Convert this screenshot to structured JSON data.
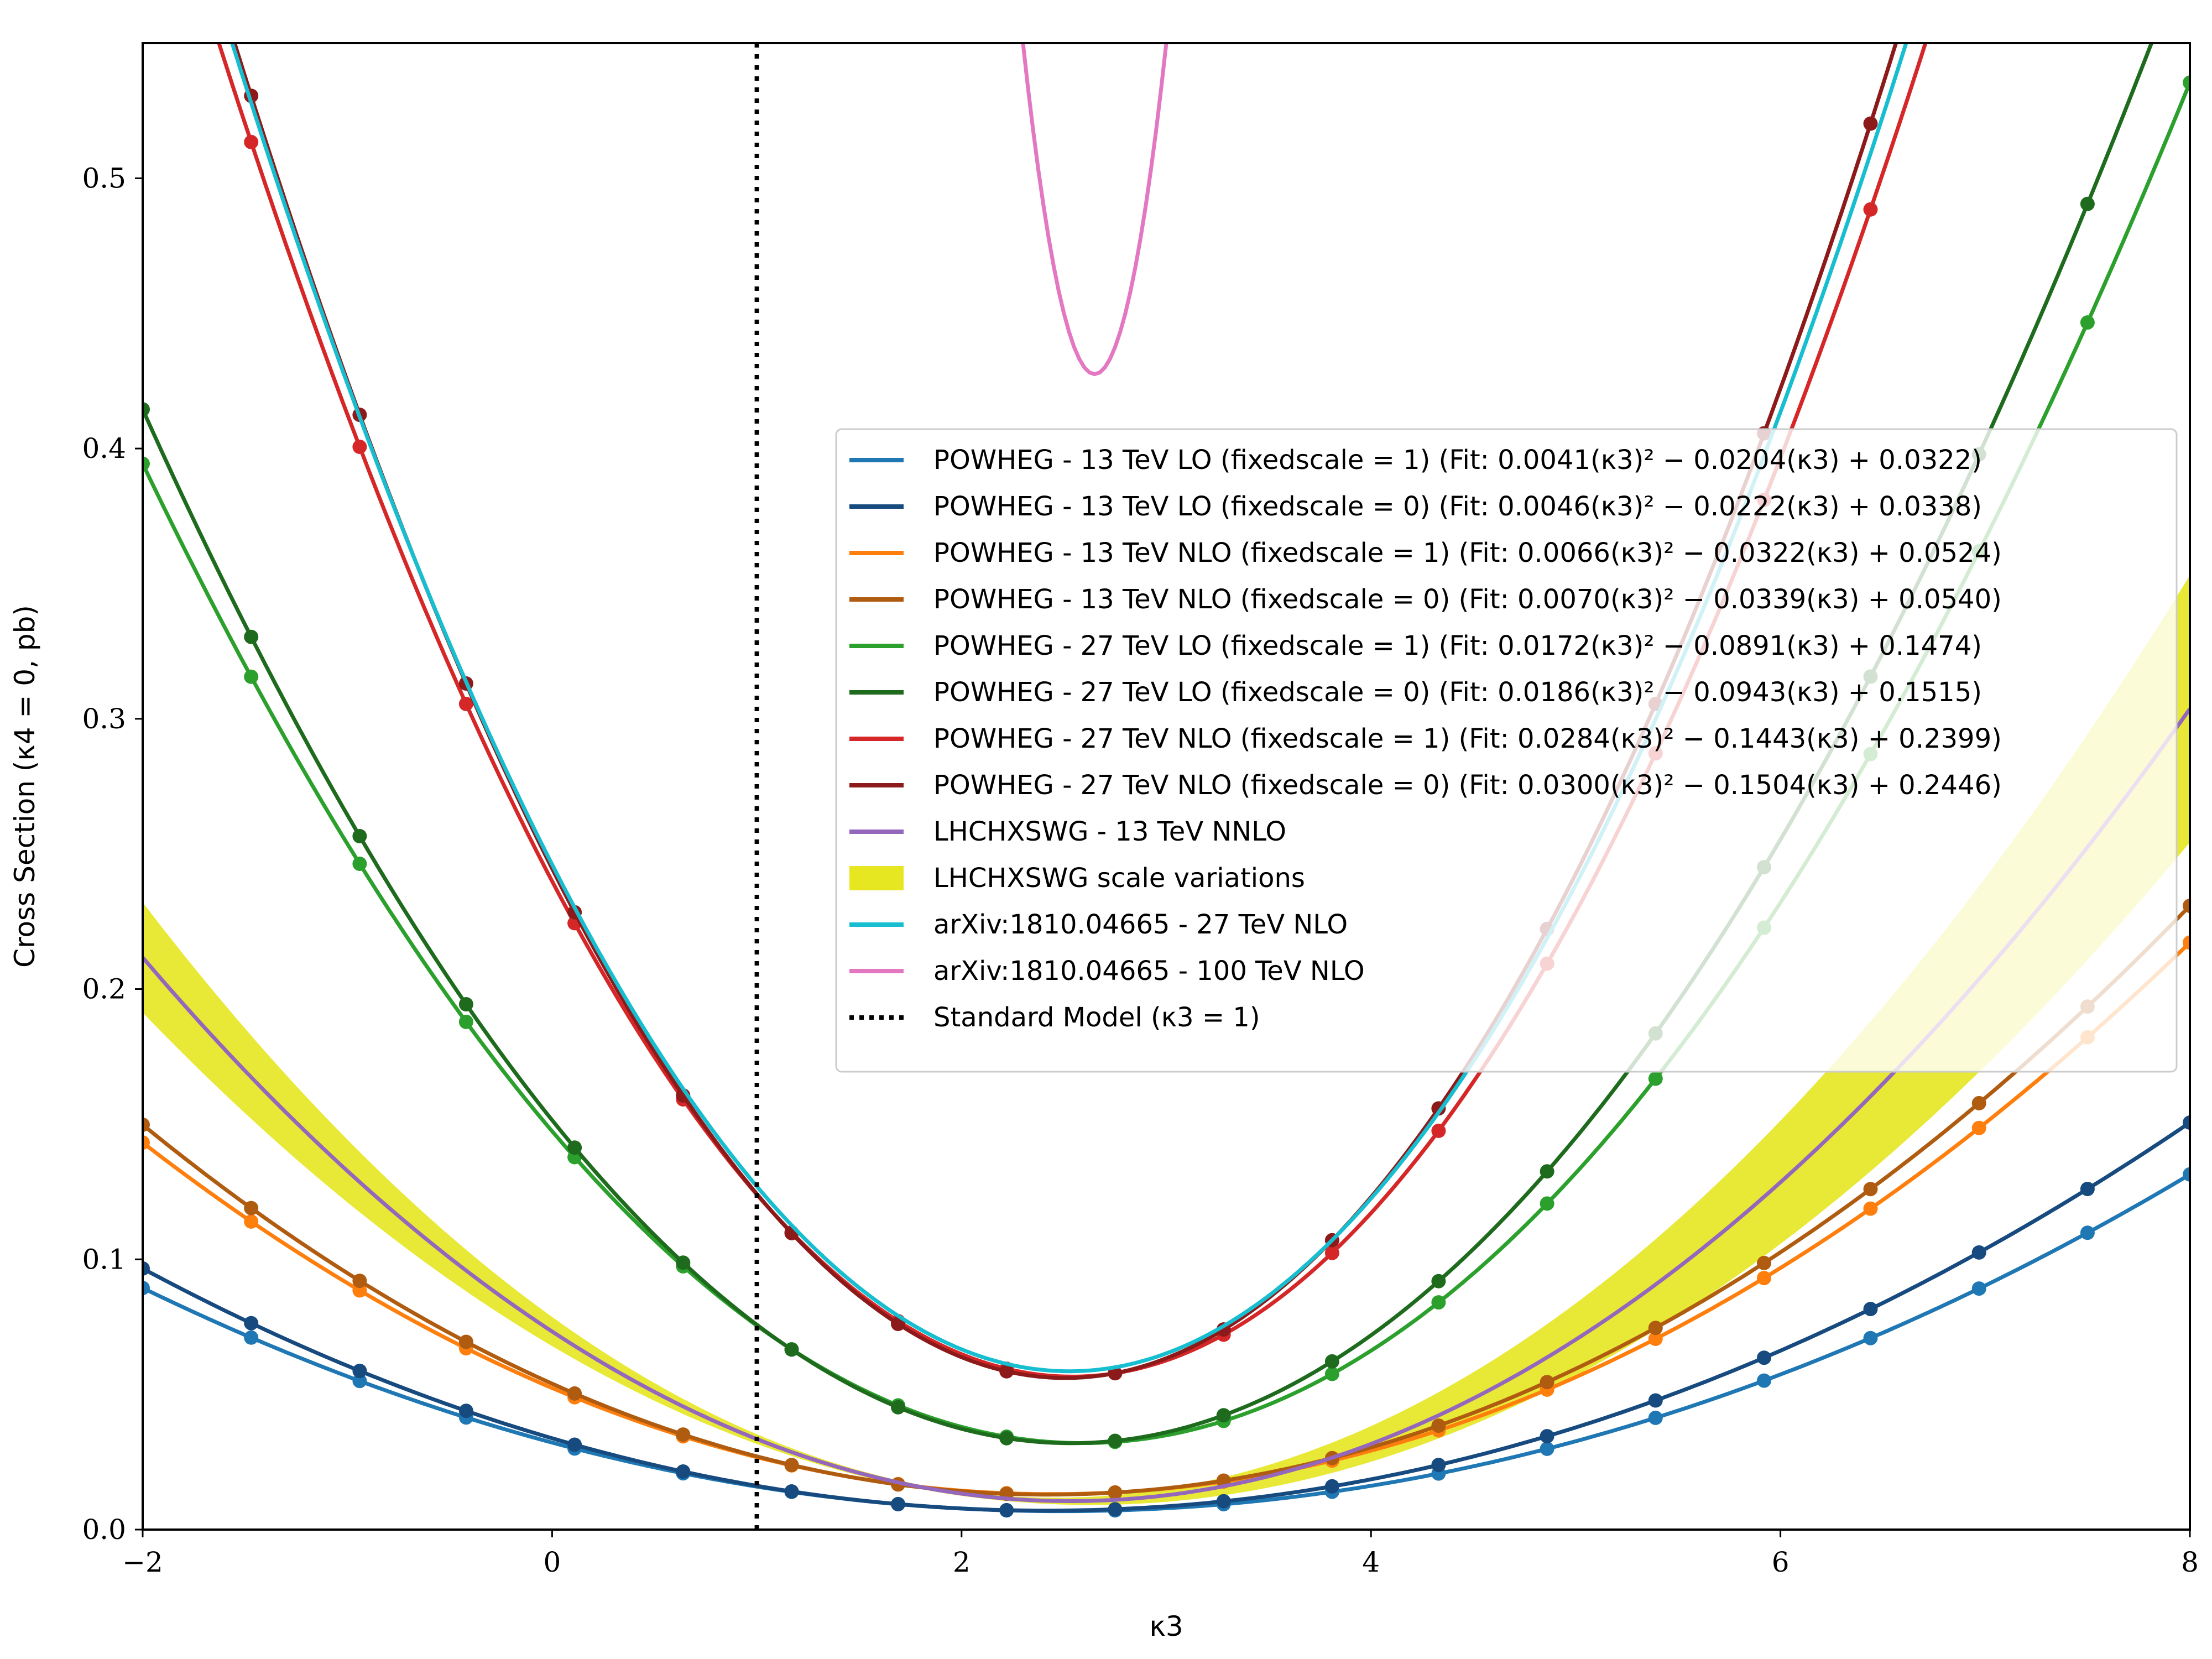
{
  "chart_data": {
    "type": "line",
    "xlabel": "κ3",
    "ylabel": "Cross Section (κ4 = 0, pb)",
    "xlim": [
      -2,
      8
    ],
    "ylim": [
      0,
      0.55
    ],
    "xticks": [
      "−2",
      "0",
      "2",
      "4",
      "6",
      "8"
    ],
    "xtick_values": [
      -2,
      0,
      2,
      4,
      6,
      8
    ],
    "yticks": [
      "0.0",
      "0.1",
      "0.2",
      "0.3",
      "0.4",
      "0.5"
    ],
    "ytick_values": [
      0,
      0.1,
      0.2,
      0.3,
      0.4,
      0.5
    ],
    "grid": false,
    "legend_position": "center-right",
    "sample_x": [
      -2.0,
      -1.47,
      -0.94,
      -0.42,
      0.11,
      0.64,
      1.17,
      1.69,
      2.22,
      2.75,
      3.28,
      3.81,
      4.33,
      4.86,
      5.39,
      5.92,
      6.44,
      6.97,
      7.5,
      8.0
    ],
    "fits": [
      {
        "label": "POWHEG - 13 TeV LO (fixedscale = 1) (Fit: 0.0041(κ3)² − 0.0204(κ3) + 0.0322)",
        "color": "#1f77b4",
        "coef": [
          0.0041,
          -0.0204,
          0.0322
        ],
        "markers": true
      },
      {
        "label": "POWHEG - 13 TeV LO (fixedscale = 0) (Fit: 0.0046(κ3)² − 0.0222(κ3) + 0.0338)",
        "color": "#174a7e",
        "coef": [
          0.0046,
          -0.0222,
          0.0338
        ],
        "markers": true
      },
      {
        "label": "POWHEG - 13 TeV NLO (fixedscale = 1) (Fit: 0.0066(κ3)² − 0.0322(κ3) + 0.0524)",
        "color": "#ff7f0e",
        "coef": [
          0.0066,
          -0.0322,
          0.0524
        ],
        "markers": true
      },
      {
        "label": "POWHEG - 13 TeV NLO (fixedscale = 0) (Fit: 0.0070(κ3)² − 0.0339(κ3) + 0.0540)",
        "color": "#b05c10",
        "coef": [
          0.007,
          -0.0339,
          0.054
        ],
        "markers": true
      },
      {
        "label": "POWHEG - 27 TeV LO (fixedscale = 1) (Fit: 0.0172(κ3)² − 0.0891(κ3) + 0.1474)",
        "color": "#2ca02c",
        "coef": [
          0.0172,
          -0.0891,
          0.1474
        ],
        "markers": true
      },
      {
        "label": "POWHEG - 27 TeV LO (fixedscale = 0) (Fit: 0.0186(κ3)² − 0.0943(κ3) + 0.1515)",
        "color": "#1e6b1e",
        "coef": [
          0.0186,
          -0.0943,
          0.1515
        ],
        "markers": true
      },
      {
        "label": "POWHEG - 27 TeV NLO (fixedscale = 1) (Fit: 0.0284(κ3)² − 0.1443(κ3) + 0.2399)",
        "color": "#d62728",
        "coef": [
          0.0284,
          -0.1443,
          0.2399
        ],
        "markers": true
      },
      {
        "label": "POWHEG - 27 TeV NLO (fixedscale = 0) (Fit: 0.0300(κ3)² − 0.1504(κ3) + 0.2446)",
        "color": "#8c1a1a",
        "coef": [
          0.03,
          -0.1504,
          0.2446
        ],
        "markers": true
      },
      {
        "label": "LHCHXSWG - 13 TeV NNLO",
        "color": "#9467bd",
        "coef": [
          0.0098,
          -0.0496,
          0.0733
        ],
        "markers": false
      },
      {
        "label": "arXiv:1810.04665 - 27 TeV NLO",
        "color": "#17becf",
        "coef": [
          0.0294,
          -0.1485,
          0.2461
        ],
        "markers": false
      },
      {
        "label": "arXiv:1810.04665 - 100 TeV NLO",
        "color": "#e377c2",
        "coef": [
          1.0,
          -5.3,
          7.45
        ],
        "markers": false
      }
    ],
    "band": {
      "label": "LHCHXSWG scale variations",
      "color": "#e6e621",
      "upper_coef": [
        0.0111,
        -0.0545,
        0.0787
      ],
      "lower_coef": [
        0.0085,
        -0.0447,
        0.0679
      ]
    },
    "vline": {
      "label": "Standard Model (κ3 = 1)",
      "x": 1,
      "color": "#000000"
    }
  }
}
